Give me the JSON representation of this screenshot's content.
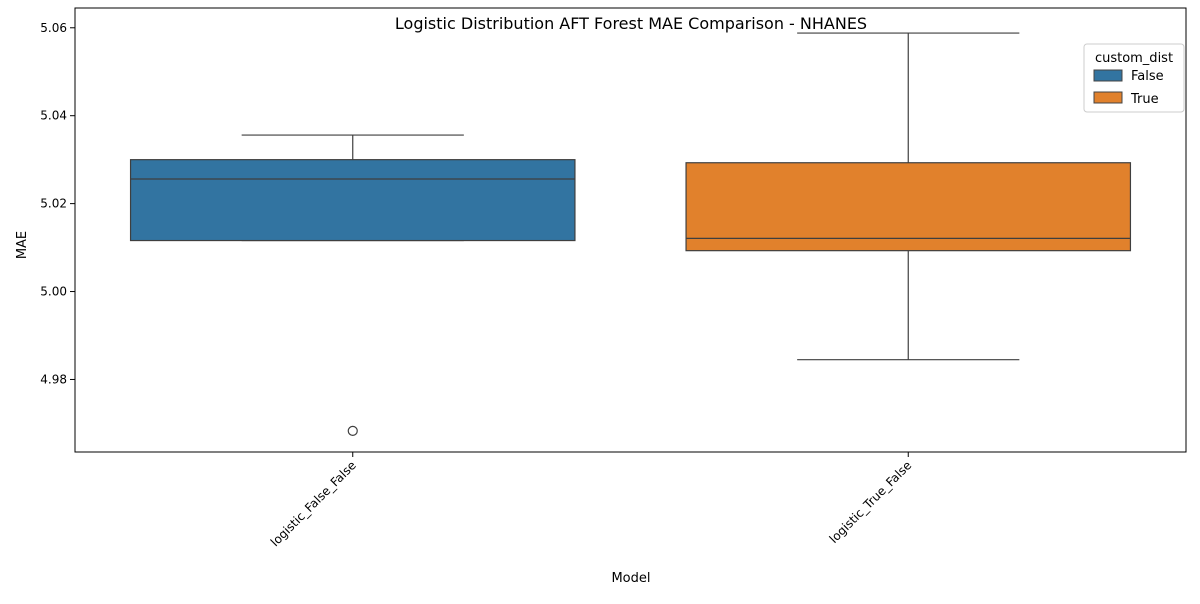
{
  "chart_data": {
    "type": "box",
    "title": "Logistic Distribution AFT Forest MAE Comparison - NHANES",
    "xlabel": "Model",
    "ylabel": "MAE",
    "categories": [
      "logistic_False_False",
      "logistic_True_False"
    ],
    "ylim": [
      4.9635,
      5.0645
    ],
    "yticks": [
      4.98,
      5.0,
      5.02,
      5.04,
      5.06
    ],
    "ytick_labels": [
      "4.98",
      "5.00",
      "5.02",
      "5.04",
      "5.06"
    ],
    "grid": false,
    "legend": {
      "title": "custom_dist",
      "placement": "top-right",
      "entries": [
        {
          "label": "False",
          "color": "#3274a1"
        },
        {
          "label": "True",
          "color": "#e1812c"
        }
      ]
    },
    "series": [
      {
        "name": "False",
        "color": "#3274a1",
        "category": "logistic_False_False",
        "whisker_low": 5.0116,
        "q1": 5.0116,
        "median": 5.0256,
        "q3": 5.03,
        "whisker_high": 5.0356,
        "outliers": [
          4.9683
        ]
      },
      {
        "name": "True",
        "color": "#e1812c",
        "category": "logistic_True_False",
        "whisker_low": 4.9845,
        "q1": 5.0093,
        "median": 5.0121,
        "q3": 5.0293,
        "whisker_high": 5.0588,
        "outliers": []
      }
    ]
  }
}
